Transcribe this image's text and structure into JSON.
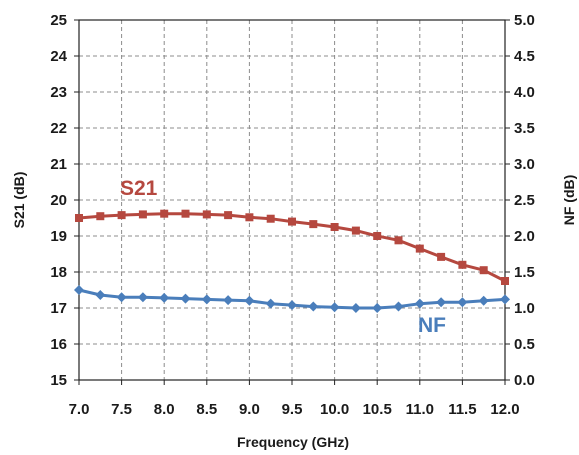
{
  "chart_data": {
    "type": "line",
    "xlabel": "Frequency (GHz)",
    "ylabel_left": "S21 (dB)",
    "ylabel_right": "NF (dB)",
    "xlim": [
      7.0,
      12.0
    ],
    "ylim_left": [
      15,
      25
    ],
    "ylim_right": [
      0.0,
      5.0
    ],
    "grid": true,
    "x_ticks": [
      "7.0",
      "7.5",
      "8.0",
      "8.5",
      "9.0",
      "9.5",
      "10.0",
      "10.5",
      "11.0",
      "11.5",
      "12.0"
    ],
    "y_ticks_left": [
      "15",
      "16",
      "17",
      "18",
      "19",
      "20",
      "21",
      "22",
      "23",
      "24",
      "25"
    ],
    "y_ticks_right": [
      "0.0",
      "0.5",
      "1.0",
      "1.5",
      "2.0",
      "2.5",
      "3.0",
      "3.5",
      "4.0",
      "4.5",
      "5.0"
    ],
    "x": [
      7.0,
      7.25,
      7.5,
      7.75,
      8.0,
      8.25,
      8.5,
      8.75,
      9.0,
      9.25,
      9.5,
      9.75,
      10.0,
      10.25,
      10.5,
      10.75,
      11.0,
      11.25,
      11.5,
      11.75,
      12.0
    ],
    "series": [
      {
        "name": "S21",
        "axis": "left",
        "color": "#b5483f",
        "marker": "square",
        "values": [
          19.5,
          19.55,
          19.58,
          19.6,
          19.62,
          19.62,
          19.6,
          19.58,
          19.52,
          19.48,
          19.4,
          19.33,
          19.25,
          19.15,
          19.0,
          18.88,
          18.65,
          18.42,
          18.2,
          18.05,
          17.75
        ]
      },
      {
        "name": "NF",
        "axis": "right",
        "color": "#4a7ebb",
        "marker": "diamond",
        "values": [
          1.25,
          1.18,
          1.15,
          1.15,
          1.14,
          1.13,
          1.12,
          1.11,
          1.1,
          1.06,
          1.04,
          1.02,
          1.01,
          1.0,
          1.0,
          1.02,
          1.06,
          1.08,
          1.08,
          1.1,
          1.12
        ]
      }
    ]
  }
}
